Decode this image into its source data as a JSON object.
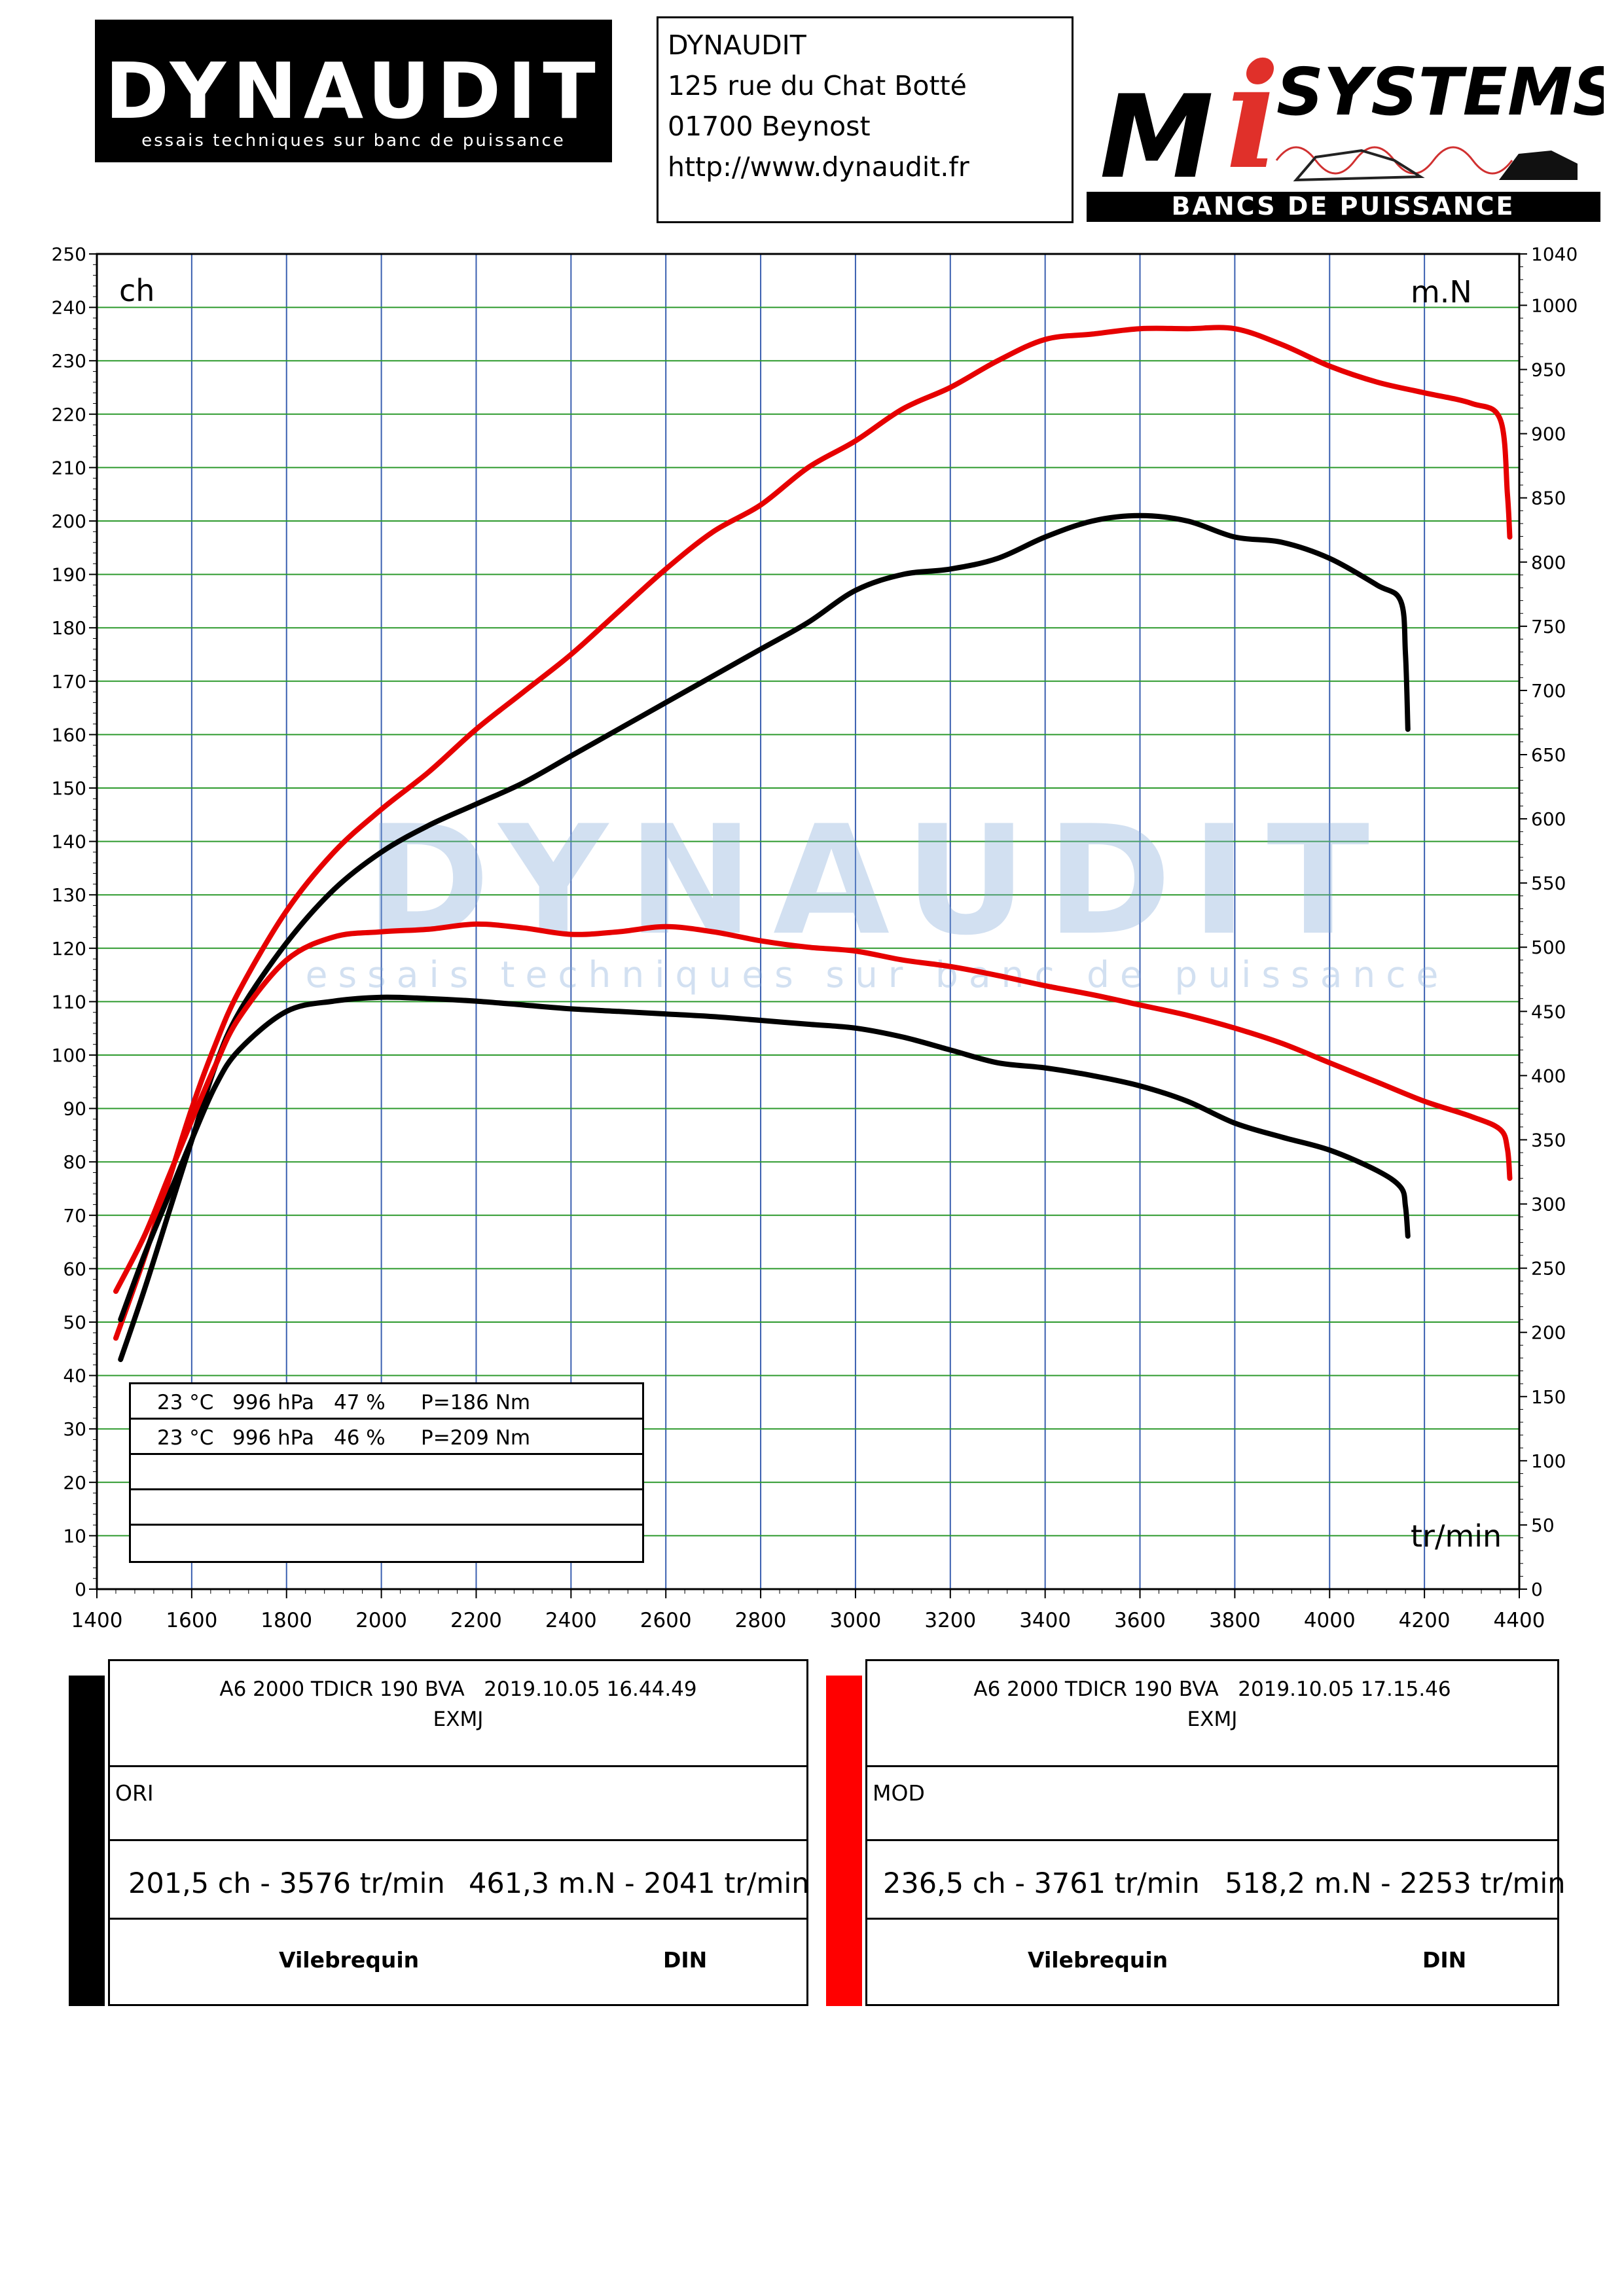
{
  "header": {
    "logo_left": {
      "brand": "DYNAUDIT",
      "tagline": "essais techniques sur banc de puissance"
    },
    "address": {
      "name": "DYNAUDIT",
      "street": "125 rue du Chat Botté",
      "city": "01700 Beynost",
      "url": "http://www.dynaudit.fr"
    },
    "logo_right": {
      "brand_m": "M",
      "brand_i": "i",
      "brand_systems": "SYSTEMS",
      "tagline": "BANCS DE PUISSANCE"
    }
  },
  "watermark": {
    "brand": "DYNAUDIT",
    "tagline": "essais techniques sur banc de puissance"
  },
  "chart_data": {
    "type": "line",
    "left_unit": "ch",
    "right_unit": "m.N",
    "x_unit": "tr/min",
    "xlim": [
      1400,
      4400
    ],
    "ylim_left": [
      0,
      250
    ],
    "ylim_right": [
      0,
      1040
    ],
    "x_ticks": [
      "1400",
      "1600",
      "1800",
      "2000",
      "2200",
      "2400",
      "2600",
      "2800",
      "3000",
      "3200",
      "3400",
      "3600",
      "3800",
      "4000",
      "4200",
      "4400"
    ],
    "y_left_ticks": [
      "0",
      "10",
      "20",
      "30",
      "40",
      "50",
      "60",
      "70",
      "80",
      "90",
      "100",
      "110",
      "120",
      "130",
      "140",
      "150",
      "160",
      "170",
      "180",
      "190",
      "200",
      "210",
      "220",
      "230",
      "240",
      "250"
    ],
    "y_right_ticks": [
      "0",
      "50",
      "100",
      "150",
      "200",
      "250",
      "300",
      "350",
      "400",
      "450",
      "500",
      "550",
      "600",
      "650",
      "700",
      "750",
      "800",
      "850",
      "900",
      "950",
      "1000",
      "1040"
    ],
    "grid": true,
    "series": [
      {
        "name": "ORI",
        "quantity": "power",
        "axis": "left",
        "color": "#000000",
        "x": [
          1450,
          1500,
          1550,
          1600,
          1650,
          1700,
          1800,
          1900,
          2000,
          2100,
          2200,
          2300,
          2400,
          2500,
          2600,
          2700,
          2800,
          2900,
          3000,
          3100,
          3200,
          3300,
          3400,
          3500,
          3600,
          3700,
          3800,
          3900,
          4000,
          4100,
          4150,
          4160,
          4165
        ],
        "values": [
          43,
          56,
          70,
          84,
          98,
          108,
          121,
          131,
          138,
          143,
          147,
          151,
          156,
          161,
          166,
          171,
          176,
          181,
          187,
          190,
          191,
          193,
          197,
          200,
          201,
          200,
          197,
          196,
          193,
          188,
          185,
          175,
          161
        ]
      },
      {
        "name": "MOD",
        "quantity": "power",
        "axis": "left",
        "color": "#e60000",
        "x": [
          1440,
          1500,
          1550,
          1600,
          1650,
          1700,
          1800,
          1900,
          2000,
          2100,
          2200,
          2300,
          2400,
          2500,
          2600,
          2700,
          2800,
          2900,
          3000,
          3100,
          3200,
          3300,
          3400,
          3500,
          3600,
          3700,
          3800,
          3900,
          4000,
          4100,
          4200,
          4300,
          4360,
          4375,
          4380
        ],
        "values": [
          47,
          62,
          76,
          90,
          102,
          112,
          127,
          138,
          146,
          153,
          161,
          168,
          175,
          183,
          191,
          198,
          203,
          210,
          215,
          221,
          225,
          230,
          234,
          235,
          236,
          236,
          236,
          233,
          229,
          226,
          224,
          222,
          219,
          205,
          197
        ]
      },
      {
        "name": "ORI",
        "quantity": "torque",
        "axis": "right",
        "color": "#000000",
        "x": [
          1450,
          1500,
          1550,
          1600,
          1650,
          1700,
          1800,
          1900,
          2000,
          2100,
          2200,
          2300,
          2400,
          2500,
          2600,
          2700,
          2800,
          2900,
          3000,
          3100,
          3200,
          3300,
          3400,
          3500,
          3600,
          3700,
          3800,
          3900,
          4000,
          4100,
          4150,
          4160,
          4165
        ],
        "values": [
          210,
          260,
          305,
          350,
          392,
          420,
          450,
          458,
          461,
          460,
          458,
          455,
          452,
          450,
          448,
          446,
          443,
          440,
          437,
          430,
          420,
          410,
          406,
          400,
          392,
          380,
          363,
          352,
          342,
          326,
          313,
          298,
          275
        ]
      },
      {
        "name": "MOD",
        "quantity": "torque",
        "axis": "right",
        "color": "#e60000",
        "x": [
          1440,
          1500,
          1550,
          1600,
          1650,
          1700,
          1800,
          1900,
          2000,
          2100,
          2200,
          2300,
          2400,
          2500,
          2600,
          2700,
          2800,
          2900,
          3000,
          3100,
          3200,
          3300,
          3400,
          3500,
          3600,
          3700,
          3800,
          3900,
          4000,
          4100,
          4200,
          4300,
          4360,
          4375,
          4380
        ],
        "values": [
          232,
          275,
          320,
          365,
          408,
          445,
          490,
          508,
          512,
          514,
          518,
          515,
          510,
          512,
          516,
          512,
          505,
          500,
          497,
          490,
          485,
          478,
          470,
          463,
          455,
          447,
          437,
          425,
          410,
          395,
          380,
          368,
          358,
          343,
          320
        ]
      }
    ]
  },
  "conditions": [
    {
      "temp": "23 °C",
      "pressure": "996 hPa",
      "humidity": "47 %",
      "p": "P=186 Nm"
    },
    {
      "temp": "23 °C",
      "pressure": "996 hPa",
      "humidity": "46 %",
      "p": "P=209 Nm"
    }
  ],
  "runs": [
    {
      "color": "#000000",
      "vehicle": "A6 2000 TDICR 190 BVA   2019.10.05 16.44.49",
      "code": "EXMJ",
      "label": "ORI",
      "power": "201,5 ch - 3576 tr/min",
      "torque": "461,3 m.N - 2041 tr/min",
      "measure": "Vilebrequin",
      "norm": "DIN"
    },
    {
      "color": "#ff0000",
      "vehicle": "A6 2000 TDICR 190 BVA   2019.10.05 17.15.46",
      "code": "EXMJ",
      "label": "MOD",
      "power": "236,5 ch - 3761 tr/min",
      "torque": "518,2 m.N - 2253 tr/min",
      "measure": "Vilebrequin",
      "norm": "DIN"
    }
  ]
}
